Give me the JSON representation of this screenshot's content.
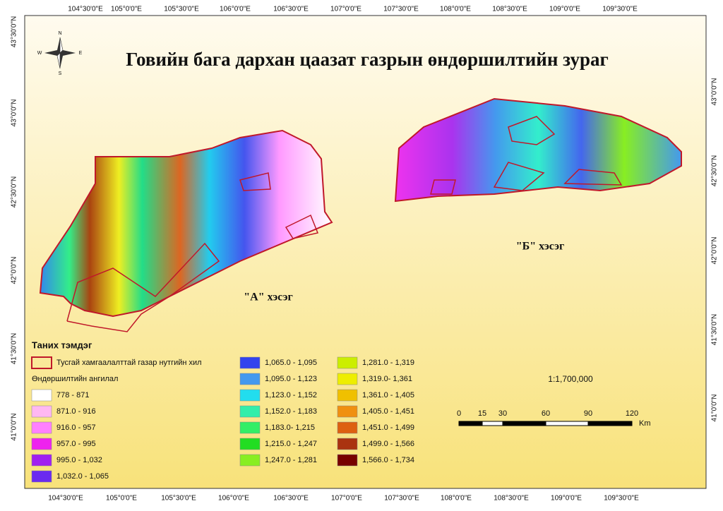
{
  "title": "Говийн бага дархан цаазат газрын өндөршилтийн зураг",
  "graticule": {
    "top": [
      "104°30'0\"E",
      "105°0'0\"E",
      "105°30'0\"E",
      "106°0'0\"E",
      "106°30'0\"E",
      "107°0'0\"E",
      "107°30'0\"E",
      "108°0'0\"E",
      "108°30'0\"E",
      "109°0'0\"E",
      "109°30'0\"E"
    ],
    "bottom": [
      "104°30'0\"E",
      "105°0'0\"E",
      "105°30'0\"E",
      "106°0'0\"E",
      "106°30'0\"E",
      "107°0'0\"E",
      "107°30'0\"E",
      "108°0'0\"E",
      "108°30'0\"E",
      "109°0'0\"E",
      "109°30'0\"E"
    ],
    "left": [
      "43°30'0\"N",
      "43°0'0\"N",
      "42°30'0\"N",
      "42°0'0\"N",
      "41°30'0\"N",
      "41°0'0\"N"
    ],
    "right": [
      "43°0'0\"N",
      "42°30'0\"N",
      "42°0'0\"N",
      "41°30'0\"N",
      "41°0'0\"N"
    ]
  },
  "compass": {
    "n": "N",
    "s": "S",
    "e": "E",
    "w": "W"
  },
  "areas": {
    "a": "\"А\" хэсэг",
    "b": "\"Б\" хэсэг"
  },
  "legend": {
    "title": "Таних тэмдэг",
    "protected": "Тусгай хамгаалалттай газар нутгийн хил",
    "elevation_title": "Өндөршилтийн ангилал",
    "classes": [
      {
        "label": "778 - 871",
        "color": "#ffffff"
      },
      {
        "label": "871.0 - 916",
        "color": "#ffb8f2"
      },
      {
        "label": "916.0 - 957",
        "color": "#ff80ff"
      },
      {
        "label": "957.0 - 995",
        "color": "#ee22ee"
      },
      {
        "label": "995.0 - 1,032",
        "color": "#a020f0"
      },
      {
        "label": "1,032.0 - 1,065",
        "color": "#6a2af0"
      },
      {
        "label": "1,065.0 - 1,095",
        "color": "#3344ee"
      },
      {
        "label": "1,095.0 - 1,123",
        "color": "#4499ee"
      },
      {
        "label": "1,123.0 - 1,152",
        "color": "#22ddee"
      },
      {
        "label": "1,152.0 - 1,183",
        "color": "#33eeaa"
      },
      {
        "label": "1,183.0- 1,215",
        "color": "#33ee66"
      },
      {
        "label": "1,215.0 - 1,247",
        "color": "#22dd22"
      },
      {
        "label": "1,247.0 - 1,281",
        "color": "#88ee22"
      },
      {
        "label": "1,281.0 - 1,319",
        "color": "#ccee00"
      },
      {
        "label": "1,319.0- 1,361",
        "color": "#eeee00"
      },
      {
        "label": "1,361.0 - 1,405",
        "color": "#f0c000"
      },
      {
        "label": "1,405.0 - 1,451",
        "color": "#f09010"
      },
      {
        "label": "1,451.0 - 1,499",
        "color": "#dd6010"
      },
      {
        "label": "1,499.0 - 1,566",
        "color": "#aa3310"
      },
      {
        "label": "1,566.0 - 1,734",
        "color": "#770000"
      }
    ]
  },
  "scale": {
    "ratio": "1:1,700,000",
    "ticks": [
      "0",
      "15",
      "30",
      "60",
      "90",
      "120"
    ],
    "unit": "Km"
  }
}
